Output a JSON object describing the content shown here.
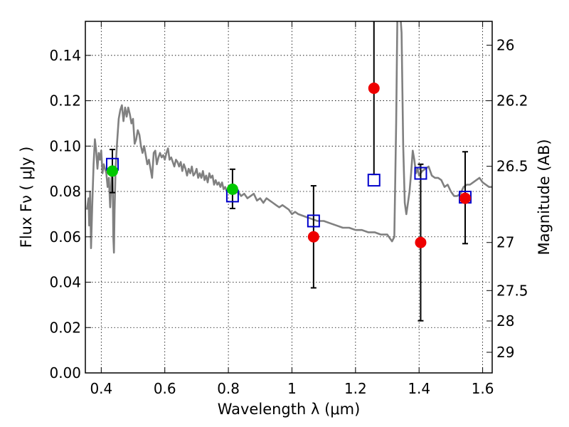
{
  "chart_data": {
    "type": "scatter",
    "title": "",
    "xlabel": "Wavelength  λ (μm)",
    "ylabel": "Flux  Fν  ( μJy )",
    "y2label": "Magnitude (AB)",
    "xlim": [
      0.35,
      1.63
    ],
    "ylim": [
      0.0,
      0.155
    ],
    "grid": true,
    "xticks": [
      0.4,
      0.6,
      0.8,
      1.0,
      1.2,
      1.4,
      1.6
    ],
    "xtick_labels": [
      "0.4",
      "0.6",
      "0.8",
      "1",
      "1.2",
      "1.4",
      "1.6"
    ],
    "yticks": [
      0.0,
      0.02,
      0.04,
      0.06,
      0.08,
      0.1,
      0.12,
      0.14
    ],
    "ytick_labels": [
      "0.00",
      "0.02",
      "0.04",
      "0.06",
      "0.08",
      "0.10",
      "0.12",
      "0.14"
    ],
    "y2ticks": [
      {
        "label": "26",
        "flux": 0.1445
      },
      {
        "label": "26.2",
        "flux": 0.12
      },
      {
        "label": "26.5",
        "flux": 0.0911
      },
      {
        "label": "27",
        "flux": 0.0575
      },
      {
        "label": "27.5",
        "flux": 0.0363
      },
      {
        "label": "28",
        "flux": 0.0229
      },
      {
        "label": "29",
        "flux": 0.0091
      }
    ],
    "series": [
      {
        "kind": "line",
        "color": "#808080",
        "points": [
          [
            0.355,
            0.072
          ],
          [
            0.36,
            0.077
          ],
          [
            0.362,
            0.065
          ],
          [
            0.365,
            0.08
          ],
          [
            0.368,
            0.055
          ],
          [
            0.372,
            0.075
          ],
          [
            0.376,
            0.092
          ],
          [
            0.38,
            0.103
          ],
          [
            0.384,
            0.098
          ],
          [
            0.388,
            0.09
          ],
          [
            0.392,
            0.097
          ],
          [
            0.396,
            0.094
          ],
          [
            0.4,
            0.098
          ],
          [
            0.404,
            0.088
          ],
          [
            0.408,
            0.092
          ],
          [
            0.412,
            0.09
          ],
          [
            0.416,
            0.088
          ],
          [
            0.42,
            0.082
          ],
          [
            0.424,
            0.086
          ],
          [
            0.428,
            0.073
          ],
          [
            0.43,
            0.079
          ],
          [
            0.433,
            0.088
          ],
          [
            0.436,
            0.086
          ],
          [
            0.438,
            0.06
          ],
          [
            0.44,
            0.053
          ],
          [
            0.442,
            0.072
          ],
          [
            0.445,
            0.09
          ],
          [
            0.45,
            0.102
          ],
          [
            0.455,
            0.112
          ],
          [
            0.46,
            0.116
          ],
          [
            0.465,
            0.118
          ],
          [
            0.47,
            0.111
          ],
          [
            0.475,
            0.117
          ],
          [
            0.48,
            0.113
          ],
          [
            0.485,
            0.117
          ],
          [
            0.49,
            0.114
          ],
          [
            0.495,
            0.11
          ],
          [
            0.5,
            0.112
          ],
          [
            0.505,
            0.101
          ],
          [
            0.51,
            0.103
          ],
          [
            0.515,
            0.107
          ],
          [
            0.52,
            0.105
          ],
          [
            0.525,
            0.1
          ],
          [
            0.53,
            0.097
          ],
          [
            0.535,
            0.1
          ],
          [
            0.54,
            0.096
          ],
          [
            0.545,
            0.092
          ],
          [
            0.55,
            0.094
          ],
          [
            0.555,
            0.09
          ],
          [
            0.56,
            0.086
          ],
          [
            0.565,
            0.097
          ],
          [
            0.57,
            0.098
          ],
          [
            0.575,
            0.092
          ],
          [
            0.58,
            0.095
          ],
          [
            0.585,
            0.097
          ],
          [
            0.59,
            0.095
          ],
          [
            0.595,
            0.096
          ],
          [
            0.6,
            0.094
          ],
          [
            0.605,
            0.097
          ],
          [
            0.61,
            0.099
          ],
          [
            0.615,
            0.094
          ],
          [
            0.62,
            0.095
          ],
          [
            0.625,
            0.093
          ],
          [
            0.63,
            0.091
          ],
          [
            0.635,
            0.094
          ],
          [
            0.64,
            0.093
          ],
          [
            0.645,
            0.091
          ],
          [
            0.65,
            0.093
          ],
          [
            0.655,
            0.089
          ],
          [
            0.66,
            0.092
          ],
          [
            0.665,
            0.09
          ],
          [
            0.67,
            0.087
          ],
          [
            0.675,
            0.09
          ],
          [
            0.68,
            0.088
          ],
          [
            0.685,
            0.091
          ],
          [
            0.69,
            0.087
          ],
          [
            0.695,
            0.088
          ],
          [
            0.7,
            0.09
          ],
          [
            0.705,
            0.086
          ],
          [
            0.71,
            0.088
          ],
          [
            0.715,
            0.086
          ],
          [
            0.72,
            0.089
          ],
          [
            0.725,
            0.085
          ],
          [
            0.73,
            0.087
          ],
          [
            0.735,
            0.084
          ],
          [
            0.74,
            0.088
          ],
          [
            0.745,
            0.086
          ],
          [
            0.75,
            0.087
          ],
          [
            0.755,
            0.083
          ],
          [
            0.76,
            0.085
          ],
          [
            0.765,
            0.083
          ],
          [
            0.77,
            0.084
          ],
          [
            0.775,
            0.082
          ],
          [
            0.78,
            0.084
          ],
          [
            0.785,
            0.081
          ],
          [
            0.79,
            0.082
          ],
          [
            0.795,
            0.08
          ],
          [
            0.8,
            0.081
          ],
          [
            0.81,
            0.08
          ],
          [
            0.82,
            0.079
          ],
          [
            0.83,
            0.08
          ],
          [
            0.84,
            0.078
          ],
          [
            0.85,
            0.079
          ],
          [
            0.86,
            0.077
          ],
          [
            0.87,
            0.078
          ],
          [
            0.88,
            0.079
          ],
          [
            0.89,
            0.076
          ],
          [
            0.9,
            0.077
          ],
          [
            0.91,
            0.075
          ],
          [
            0.92,
            0.077
          ],
          [
            0.93,
            0.076
          ],
          [
            0.94,
            0.075
          ],
          [
            0.95,
            0.074
          ],
          [
            0.96,
            0.073
          ],
          [
            0.97,
            0.074
          ],
          [
            0.98,
            0.073
          ],
          [
            0.99,
            0.072
          ],
          [
            1.0,
            0.07
          ],
          [
            1.01,
            0.071
          ],
          [
            1.02,
            0.07
          ],
          [
            1.04,
            0.069
          ],
          [
            1.06,
            0.068
          ],
          [
            1.08,
            0.067
          ],
          [
            1.1,
            0.067
          ],
          [
            1.12,
            0.066
          ],
          [
            1.14,
            0.065
          ],
          [
            1.16,
            0.064
          ],
          [
            1.18,
            0.064
          ],
          [
            1.2,
            0.063
          ],
          [
            1.22,
            0.063
          ],
          [
            1.24,
            0.062
          ],
          [
            1.26,
            0.062
          ],
          [
            1.28,
            0.061
          ],
          [
            1.3,
            0.061
          ],
          [
            1.315,
            0.058
          ],
          [
            1.322,
            0.06
          ],
          [
            1.328,
            0.11
          ],
          [
            1.332,
            0.16
          ],
          [
            1.34,
            0.16
          ],
          [
            1.345,
            0.15
          ],
          [
            1.35,
            0.1
          ],
          [
            1.355,
            0.075
          ],
          [
            1.36,
            0.07
          ],
          [
            1.365,
            0.075
          ],
          [
            1.37,
            0.08
          ],
          [
            1.375,
            0.088
          ],
          [
            1.38,
            0.098
          ],
          [
            1.385,
            0.094
          ],
          [
            1.39,
            0.088
          ],
          [
            1.395,
            0.09
          ],
          [
            1.4,
            0.087
          ],
          [
            1.41,
            0.089
          ],
          [
            1.42,
            0.09
          ],
          [
            1.43,
            0.091
          ],
          [
            1.44,
            0.087
          ],
          [
            1.45,
            0.086
          ],
          [
            1.46,
            0.086
          ],
          [
            1.47,
            0.085
          ],
          [
            1.48,
            0.082
          ],
          [
            1.49,
            0.083
          ],
          [
            1.5,
            0.08
          ],
          [
            1.51,
            0.078
          ],
          [
            1.52,
            0.078
          ],
          [
            1.53,
            0.079
          ],
          [
            1.54,
            0.082
          ],
          [
            1.55,
            0.083
          ],
          [
            1.56,
            0.083
          ],
          [
            1.57,
            0.084
          ],
          [
            1.58,
            0.085
          ],
          [
            1.59,
            0.086
          ],
          [
            1.6,
            0.084
          ],
          [
            1.61,
            0.083
          ],
          [
            1.62,
            0.082
          ],
          [
            1.63,
            0.082
          ]
        ]
      },
      {
        "kind": "open-square",
        "color": "#0000cc",
        "points": [
          [
            0.435,
            0.092
          ],
          [
            0.813,
            0.078
          ],
          [
            1.068,
            0.067
          ],
          [
            1.258,
            0.085
          ],
          [
            1.405,
            0.088
          ],
          [
            1.545,
            0.0775
          ]
        ]
      },
      {
        "kind": "circle",
        "color": "#00c800",
        "points": [
          [
            0.435,
            0.089
          ],
          [
            0.813,
            0.081
          ]
        ]
      },
      {
        "kind": "circle-with-errorbar",
        "color": "#ee0000",
        "points": [
          {
            "x": 0.435,
            "y": 0.089,
            "lo": 0.0795,
            "hi": 0.0985,
            "marker": false
          },
          {
            "x": 0.813,
            "y": 0.081,
            "lo": 0.0725,
            "hi": 0.0898,
            "marker": false
          },
          {
            "x": 1.068,
            "y": 0.06,
            "lo": 0.0375,
            "hi": 0.0825,
            "marker": true
          },
          {
            "x": 1.258,
            "y": 0.1255,
            "lo": 0.0875,
            "hi": 0.16,
            "marker": true
          },
          {
            "x": 1.405,
            "y": 0.0575,
            "lo": 0.023,
            "hi": 0.092,
            "marker": true
          },
          {
            "x": 1.545,
            "y": 0.077,
            "lo": 0.057,
            "hi": 0.0975,
            "marker": true
          }
        ]
      }
    ]
  }
}
